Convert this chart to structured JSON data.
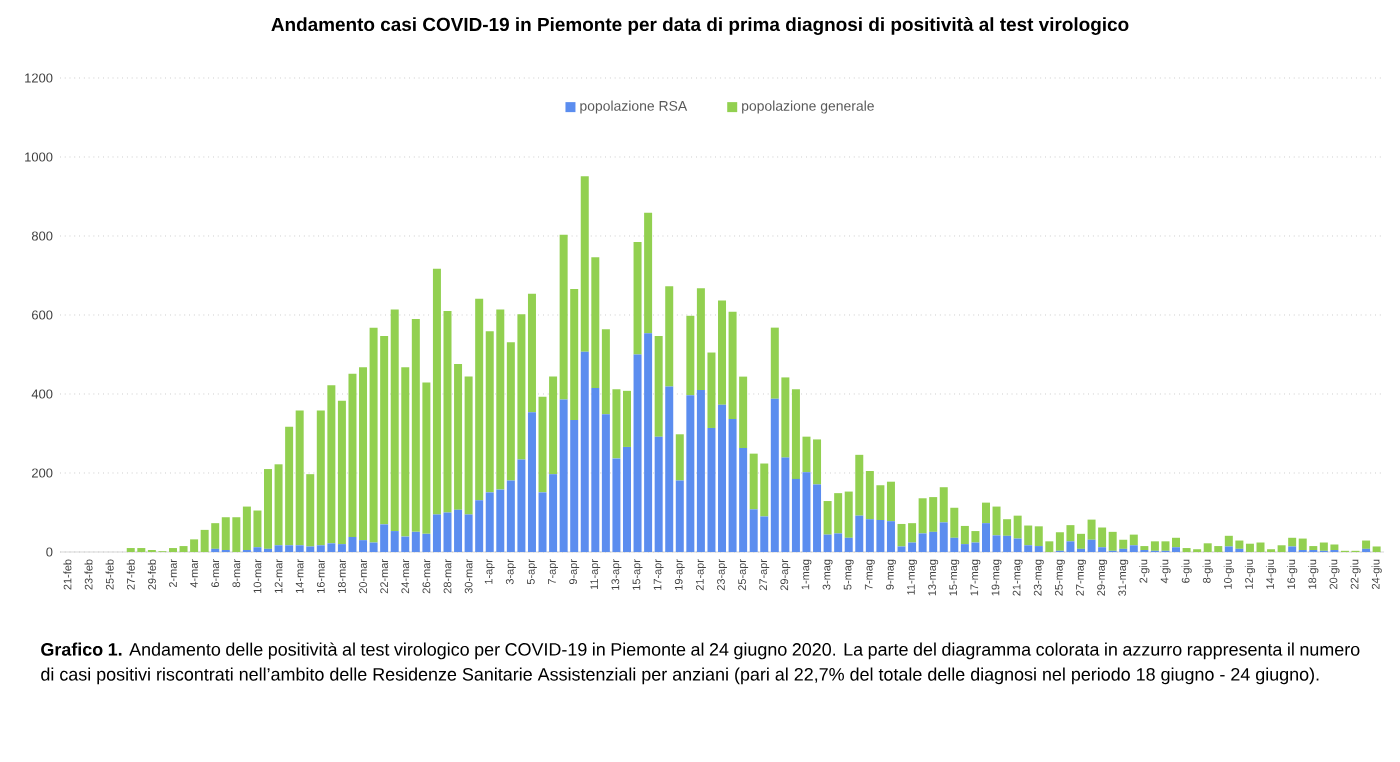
{
  "chart_data": {
    "type": "bar",
    "stacked": true,
    "title": "Andamento casi COVID-19 in Piemonte per data di prima diagnosi di positività al test virologico",
    "categories": [
      "21-feb",
      null,
      "23-feb",
      null,
      "25-feb",
      null,
      "27-feb",
      null,
      "29-feb",
      null,
      "2-mar",
      null,
      "4-mar",
      null,
      "6-mar",
      null,
      "8-mar",
      null,
      "10-mar",
      null,
      "12-mar",
      null,
      "14-mar",
      null,
      "16-mar",
      null,
      "18-mar",
      null,
      "20-mar",
      null,
      "22-mar",
      null,
      "24-mar",
      null,
      "26-mar",
      null,
      "28-mar",
      null,
      "30-mar",
      null,
      "1-apr",
      null,
      "3-apr",
      null,
      "5-apr",
      null,
      "7-apr",
      null,
      "9-apr",
      null,
      "11-apr",
      null,
      "13-apr",
      null,
      "15-apr",
      null,
      "17-apr",
      null,
      "19-apr",
      null,
      "21-apr",
      null,
      "23-apr",
      null,
      "25-apr",
      null,
      "27-apr",
      null,
      "29-apr",
      null,
      "1-mag",
      null,
      "3-mag",
      null,
      "5-mag",
      null,
      "7-mag",
      null,
      "9-mag",
      null,
      "11-mag",
      null,
      "13-mag",
      null,
      "15-mag",
      null,
      "17-mag",
      null,
      "19-mag",
      null,
      "21-mag",
      null,
      "23-mag",
      null,
      "25-mag",
      null,
      "27-mag",
      null,
      "29-mag",
      null,
      "31-mag",
      null,
      "2-giu",
      null,
      "4-giu",
      null,
      "6-giu",
      null,
      "8-giu",
      null,
      "10-giu",
      null,
      "12-giu",
      null,
      "14-giu",
      null,
      "16-giu",
      null,
      "18-giu",
      null,
      "20-giu",
      null,
      "22-giu",
      null,
      "24-giu"
    ],
    "series": [
      {
        "name": "popolazione RSA",
        "color": "#5b8def",
        "values": [
          0,
          0,
          0,
          0,
          0,
          0,
          0,
          0,
          0,
          0,
          0,
          0,
          0,
          0,
          8,
          5,
          0,
          5,
          12,
          8,
          17,
          17,
          17,
          14,
          17,
          22,
          20,
          38,
          30,
          24,
          70,
          53,
          39,
          51,
          46,
          95,
          100,
          107,
          95,
          131,
          151,
          158,
          181,
          234,
          354,
          151,
          197,
          386,
          334,
          507,
          415,
          349,
          237,
          266,
          500,
          554,
          292,
          419,
          181,
          397,
          410,
          314,
          373,
          337,
          263,
          108,
          90,
          388,
          239,
          185,
          202,
          171,
          44,
          47,
          36,
          92,
          83,
          81,
          78,
          14,
          24,
          47,
          51,
          75,
          36,
          20,
          24,
          73,
          42,
          41,
          34,
          17,
          15,
          0,
          3,
          27,
          8,
          31,
          12,
          3,
          8,
          17,
          5,
          3,
          3,
          12,
          0,
          0,
          0,
          0,
          14,
          8,
          0,
          0,
          0,
          0,
          14,
          5,
          5,
          3,
          5,
          0,
          0,
          8,
          0
        ]
      },
      {
        "name": "popolazione generale",
        "color": "#92d050",
        "values": [
          0,
          0,
          0,
          0,
          0,
          0,
          10,
          10,
          5,
          2,
          10,
          15,
          32,
          56,
          65,
          83,
          88,
          110,
          93,
          202,
          205,
          300,
          341,
          183,
          341,
          400,
          363,
          413,
          438,
          544,
          477,
          561,
          429,
          539,
          383,
          622,
          510,
          369,
          349,
          510,
          408,
          456,
          350,
          368,
          300,
          242,
          247,
          417,
          332,
          444,
          331,
          215,
          175,
          142,
          285,
          305,
          255,
          254,
          117,
          201,
          258,
          191,
          264,
          271,
          181,
          141,
          134,
          180,
          203,
          227,
          90,
          114,
          85,
          102,
          117,
          154,
          122,
          88,
          100,
          57,
          49,
          89,
          88,
          89,
          76,
          46,
          29,
          52,
          73,
          42,
          58,
          50,
          50,
          27,
          47,
          41,
          38,
          51,
          50,
          48,
          23,
          27,
          10,
          24,
          24,
          24,
          10,
          7,
          22,
          15,
          27,
          21,
          21,
          24,
          7,
          17,
          22,
          29,
          10,
          21,
          14,
          3,
          3,
          21,
          14
        ]
      }
    ],
    "ylim": [
      0,
      1200
    ],
    "yticks": [
      0,
      200,
      400,
      600,
      800,
      1000,
      1200
    ],
    "grid": "y",
    "legend": "top",
    "annotations": [
      "**Grafico 1.** Andamento delle positività al test virologico per COVID-19 in Piemonte al 24 giugno 2020. La parte del diagramma colorata in azzurro rappresenta il numero di casi positivi riscontrati nell’ambito delle Residenze Sanitarie Assistenziali per anziani (pari al 22,7% del totale delle diagnosi nel periodo 18 giugno - 24 giugno)."
    ]
  }
}
